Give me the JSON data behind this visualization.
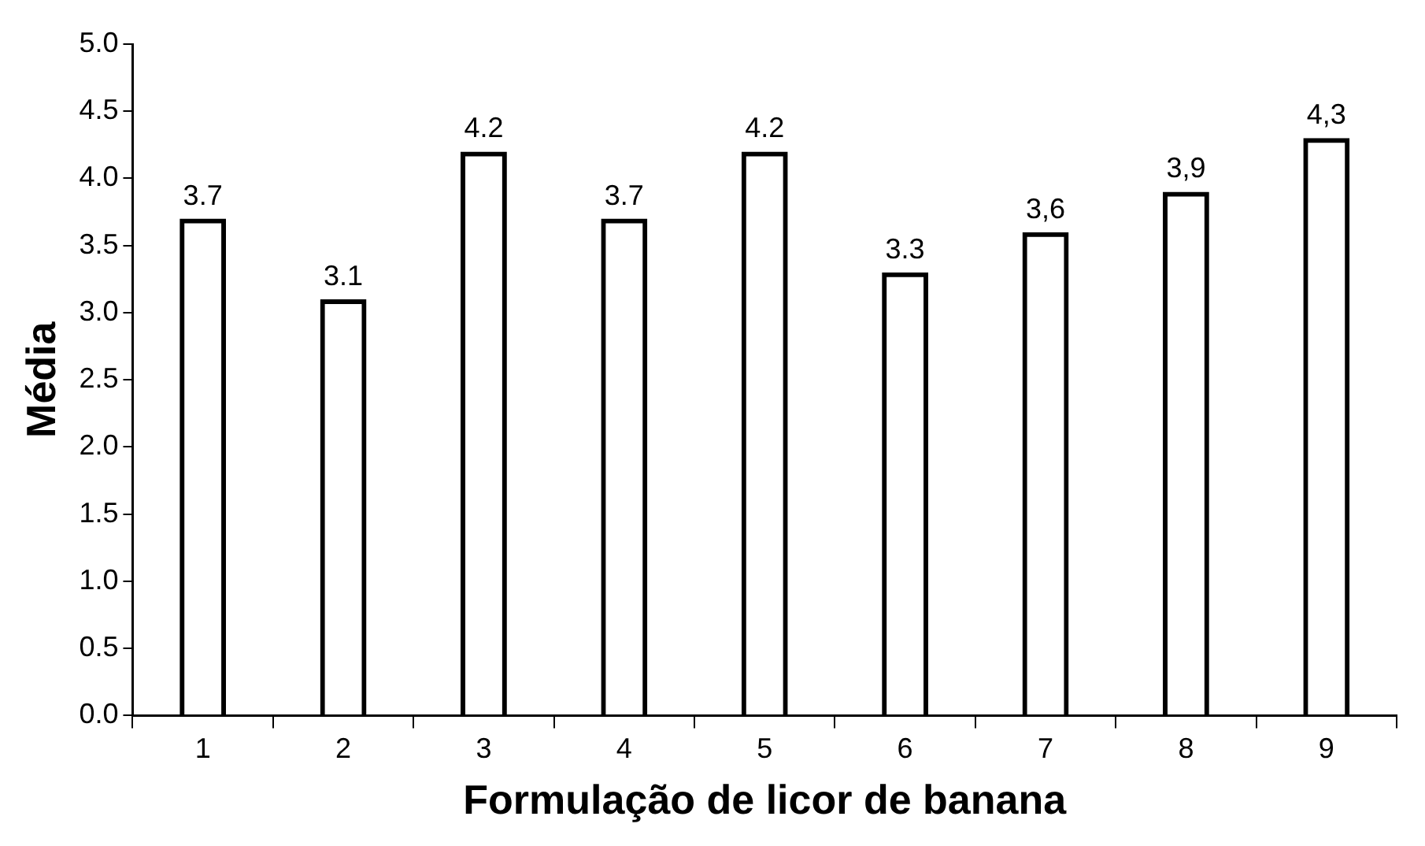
{
  "chart_data": {
    "type": "bar",
    "xlabel": "Formulação de licor de banana",
    "ylabel": "Média",
    "categories": [
      "1",
      "2",
      "3",
      "4",
      "5",
      "6",
      "7",
      "8",
      "9"
    ],
    "values": [
      3.7,
      3.1,
      4.2,
      3.7,
      4.2,
      3.3,
      3.6,
      3.9,
      4.3
    ],
    "value_labels": [
      "3.7",
      "3.1",
      "4.2",
      "3.7",
      "4.2",
      "3.3",
      "3,6",
      "3,9",
      "4,3"
    ],
    "color": "#000000",
    "ylim": [
      0,
      5
    ],
    "yticks": [
      {
        "value": 0,
        "label": "0.0"
      },
      {
        "value": 0.5,
        "label": "0.5"
      },
      {
        "value": 1,
        "label": "1.0"
      },
      {
        "value": 1.5,
        "label": "1.5"
      },
      {
        "value": 2,
        "label": "2.0"
      },
      {
        "value": 2.5,
        "label": "2.5"
      },
      {
        "value": 3,
        "label": "3.0"
      },
      {
        "value": 3.5,
        "label": "3.5"
      },
      {
        "value": 4,
        "label": "4.0"
      },
      {
        "value": 4.5,
        "label": "4.5"
      },
      {
        "value": 5,
        "label": "5.0"
      }
    ],
    "grid": false,
    "legend": false
  }
}
